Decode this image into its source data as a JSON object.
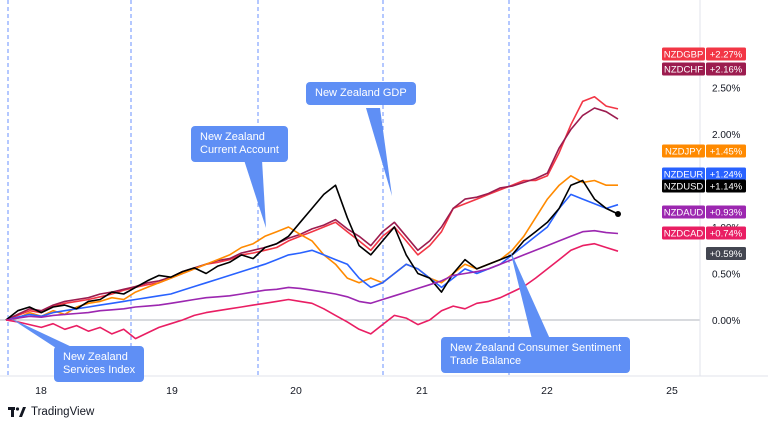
{
  "chart_data": {
    "type": "line",
    "grid": "vertical event markers",
    "legend_placement": "right",
    "y_axis": {
      "ticks": [
        "2.50%",
        "2.00%",
        "1.50%",
        "1.00%",
        "0.50%",
        "0.00%"
      ],
      "range": [
        -0.45,
        2.6
      ]
    },
    "x_axis": {
      "ticks": [
        "18",
        "19",
        "20",
        "21",
        "22",
        "25"
      ]
    },
    "series": [
      {
        "name": "NZDGBP",
        "last_label": "+2.27%",
        "color": "#f23645",
        "values": [
          0,
          0.05,
          0.1,
          0.08,
          0.15,
          0.18,
          0.2,
          0.22,
          0.25,
          0.28,
          0.32,
          0.35,
          0.38,
          0.4,
          0.45,
          0.5,
          0.55,
          0.6,
          0.62,
          0.65,
          0.7,
          0.72,
          0.75,
          0.78,
          0.85,
          0.9,
          0.95,
          1.0,
          1.05,
          0.95,
          0.85,
          0.75,
          0.9,
          1.0,
          0.85,
          0.7,
          0.8,
          0.95,
          1.2,
          1.25,
          1.3,
          1.35,
          1.4,
          1.45,
          1.5,
          1.5,
          1.55,
          1.8,
          2.1,
          2.35,
          2.4,
          2.3,
          2.27
        ]
      },
      {
        "name": "NZDCHF",
        "last_label": "+2.16%",
        "color": "#9c1c4f",
        "values": [
          0,
          0.06,
          0.12,
          0.1,
          0.16,
          0.2,
          0.22,
          0.24,
          0.28,
          0.3,
          0.33,
          0.36,
          0.4,
          0.42,
          0.46,
          0.52,
          0.56,
          0.6,
          0.64,
          0.66,
          0.72,
          0.75,
          0.78,
          0.82,
          0.88,
          0.92,
          0.98,
          1.02,
          1.08,
          0.98,
          0.9,
          0.8,
          0.95,
          1.05,
          0.9,
          0.75,
          0.85,
          1.0,
          1.2,
          1.3,
          1.32,
          1.36,
          1.42,
          1.44,
          1.48,
          1.52,
          1.58,
          1.85,
          2.05,
          2.2,
          2.28,
          2.24,
          2.16
        ]
      },
      {
        "name": "NZDJPY",
        "last_label": "+1.45%",
        "color": "#ff8a00",
        "values": [
          0,
          0.02,
          0.08,
          0.04,
          0.1,
          0.06,
          0.14,
          0.18,
          0.2,
          0.24,
          0.22,
          0.3,
          0.35,
          0.4,
          0.45,
          0.5,
          0.55,
          0.6,
          0.65,
          0.7,
          0.78,
          0.82,
          0.9,
          0.95,
          1.0,
          0.92,
          0.85,
          0.7,
          0.6,
          0.45,
          0.4,
          0.45,
          0.4,
          0.5,
          0.6,
          0.55,
          0.45,
          0.4,
          0.5,
          0.6,
          0.55,
          0.6,
          0.65,
          0.75,
          0.9,
          1.1,
          1.3,
          1.45,
          1.55,
          1.48,
          1.5,
          1.45,
          1.45
        ]
      },
      {
        "name": "NZDEUR",
        "last_label": "+1.24%",
        "color": "#2962ff",
        "values": [
          0,
          0.03,
          0.06,
          0.04,
          0.08,
          0.1,
          0.12,
          0.14,
          0.16,
          0.18,
          0.2,
          0.22,
          0.24,
          0.26,
          0.28,
          0.32,
          0.36,
          0.4,
          0.44,
          0.48,
          0.52,
          0.56,
          0.6,
          0.65,
          0.7,
          0.72,
          0.75,
          0.7,
          0.65,
          0.6,
          0.45,
          0.35,
          0.4,
          0.5,
          0.6,
          0.55,
          0.45,
          0.35,
          0.45,
          0.55,
          0.5,
          0.55,
          0.6,
          0.7,
          0.8,
          0.9,
          1.0,
          1.2,
          1.35,
          1.3,
          1.25,
          1.2,
          1.24
        ]
      },
      {
        "name": "NZDUSD",
        "last_label": "+1.14%",
        "color": "#000000",
        "values": [
          0,
          0.1,
          0.14,
          0.08,
          0.14,
          0.16,
          0.12,
          0.2,
          0.22,
          0.3,
          0.28,
          0.35,
          0.42,
          0.48,
          0.46,
          0.52,
          0.56,
          0.5,
          0.58,
          0.62,
          0.7,
          0.66,
          0.78,
          0.82,
          0.9,
          1.05,
          1.2,
          1.35,
          1.45,
          1.1,
          0.8,
          0.7,
          0.85,
          1.0,
          0.7,
          0.5,
          0.45,
          0.3,
          0.5,
          0.65,
          0.55,
          0.6,
          0.65,
          0.7,
          0.85,
          0.95,
          1.05,
          1.2,
          1.45,
          1.5,
          1.3,
          1.2,
          1.14
        ]
      },
      {
        "name": "NZDAUD",
        "last_label": "+0.93%",
        "color": "#9c27b0",
        "values": [
          0,
          0.02,
          0.04,
          0.03,
          0.05,
          0.06,
          0.07,
          0.08,
          0.1,
          0.11,
          0.12,
          0.14,
          0.15,
          0.16,
          0.18,
          0.2,
          0.22,
          0.24,
          0.25,
          0.26,
          0.28,
          0.3,
          0.32,
          0.33,
          0.35,
          0.34,
          0.32,
          0.3,
          0.28,
          0.25,
          0.2,
          0.18,
          0.22,
          0.26,
          0.3,
          0.34,
          0.38,
          0.42,
          0.48,
          0.5,
          0.52,
          0.55,
          0.6,
          0.65,
          0.7,
          0.75,
          0.8,
          0.85,
          0.9,
          0.95,
          0.96,
          0.94,
          0.93
        ]
      },
      {
        "name": "NZDCAD",
        "last_label": "+0.74%",
        "color": "#e91e63",
        "values": [
          0,
          -0.02,
          -0.05,
          -0.08,
          -0.04,
          -0.1,
          -0.06,
          -0.12,
          -0.08,
          -0.15,
          -0.1,
          -0.2,
          -0.14,
          -0.08,
          -0.04,
          0.0,
          0.05,
          0.08,
          0.1,
          0.12,
          0.14,
          0.16,
          0.18,
          0.2,
          0.22,
          0.2,
          0.18,
          0.12,
          0.05,
          -0.02,
          -0.1,
          -0.15,
          -0.05,
          0.05,
          0.02,
          -0.05,
          0.0,
          0.1,
          0.15,
          0.12,
          0.18,
          0.2,
          0.24,
          0.3,
          0.36,
          0.45,
          0.55,
          0.65,
          0.75,
          0.8,
          0.82,
          0.78,
          0.74
        ]
      }
    ],
    "extra_axis_label": "+0.59%",
    "annotations": [
      {
        "text": "New Zealand\nServices Index"
      },
      {
        "text": "New Zealand\nCurrent Account"
      },
      {
        "text": "New Zealand GDP"
      },
      {
        "text": "New Zealand Consumer Sentiment\nTrade Balance"
      }
    ]
  },
  "footer": {
    "brand": "TradingView"
  }
}
